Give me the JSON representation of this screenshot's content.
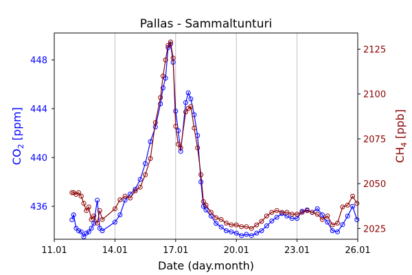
{
  "chart_data": {
    "type": "line",
    "title": "Pallas - Sammaltunturi",
    "xlabel": "Date (day.month)",
    "x_ticks": [
      "11.01",
      "14.01",
      "17.01",
      "20.01",
      "23.01",
      "26.01"
    ],
    "xlim": [
      "11.01",
      "26.01"
    ],
    "grid": "vertical lines at 14.01, 17.01, 20.01, 23.01",
    "left_axis": {
      "label_main": "CO",
      "label_sub": "2",
      "label_unit": "[ppm]",
      "color": "#0000ff",
      "ticks": [
        "436",
        "440",
        "444",
        "448"
      ],
      "ylim": [
        433.3,
        450.2
      ]
    },
    "right_axis": {
      "label_main": "CH",
      "label_sub": "4",
      "label_unit": "[ppb]",
      "color": "#8b0000",
      "ticks": [
        "2025",
        "2050",
        "2075",
        "2100",
        "2125"
      ],
      "ylim": [
        2019,
        2134
      ]
    },
    "series": [
      {
        "axis": "left",
        "color": "#0000ff",
        "marker": "open-circle",
        "points": [
          [
            "11.01 21:00",
            434.9
          ],
          [
            "11.01 23:00",
            435.3
          ],
          [
            "12.01 02:00",
            434.2
          ],
          [
            "12.01 05:00",
            434.0
          ],
          [
            "12.01 08:00",
            433.9
          ],
          [
            "12.01 11:00",
            433.5
          ],
          [
            "12.01 14:00",
            433.8
          ],
          [
            "12.01 17:00",
            433.9
          ],
          [
            "12.01 20:00",
            434.2
          ],
          [
            "12.01 23:00",
            434.6
          ],
          [
            "13.01 03:00",
            436.5
          ],
          [
            "13.01 06:00",
            434.2
          ],
          [
            "13.01 09:00",
            434.0
          ],
          [
            "14.01 00:00",
            434.7
          ],
          [
            "14.01 06:00",
            435.3
          ],
          [
            "14.01 12:00",
            436.5
          ],
          [
            "14.01 18:00",
            437.0
          ],
          [
            "15.01 00:00",
            437.4
          ],
          [
            "15.01 06:00",
            438.2
          ],
          [
            "15.01 12:00",
            439.5
          ],
          [
            "15.01 18:00",
            441.3
          ],
          [
            "16.01 00:00",
            442.5
          ],
          [
            "16.01 06:00",
            444.4
          ],
          [
            "16.01 09:00",
            445.7
          ],
          [
            "16.01 12:00",
            446.5
          ],
          [
            "16.01 15:00",
            449.0
          ],
          [
            "16.01 18:00",
            449.3
          ],
          [
            "16.01 21:00",
            447.8
          ],
          [
            "17.01 00:00",
            443.8
          ],
          [
            "17.01 03:00",
            442.2
          ],
          [
            "17.01 06:00",
            440.5
          ],
          [
            "17.01 12:00",
            444.5
          ],
          [
            "17.01 15:00",
            445.3
          ],
          [
            "17.01 18:00",
            444.8
          ],
          [
            "17.01 22:00",
            443.5
          ],
          [
            "18.01 02:00",
            441.8
          ],
          [
            "18.01 06:00",
            438.0
          ],
          [
            "18.01 09:00",
            436.0
          ],
          [
            "18.01 12:00",
            435.7
          ],
          [
            "18.01 18:00",
            435.2
          ],
          [
            "19.01 00:00",
            434.6
          ],
          [
            "19.01 06:00",
            434.3
          ],
          [
            "19.01 12:00",
            434.0
          ],
          [
            "19.01 18:00",
            433.9
          ],
          [
            "20.01 00:00",
            433.8
          ],
          [
            "20.01 06:00",
            433.6
          ],
          [
            "20.01 12:00",
            433.7
          ],
          [
            "20.01 18:00",
            433.6
          ],
          [
            "21.01 00:00",
            433.8
          ],
          [
            "21.01 06:00",
            434.0
          ],
          [
            "21.01 12:00",
            434.4
          ],
          [
            "21.01 18:00",
            434.8
          ],
          [
            "22.01 00:00",
            435.1
          ],
          [
            "22.01 06:00",
            435.4
          ],
          [
            "22.01 12:00",
            435.2
          ],
          [
            "22.01 18:00",
            435.0
          ],
          [
            "23.01 00:00",
            435.0
          ],
          [
            "23.01 06:00",
            435.6
          ],
          [
            "23.01 12:00",
            435.7
          ],
          [
            "23.01 18:00",
            435.5
          ],
          [
            "24.01 00:00",
            435.8
          ],
          [
            "24.01 06:00",
            435.3
          ],
          [
            "24.01 12:00",
            434.7
          ],
          [
            "24.01 18:00",
            434.0
          ],
          [
            "25.01 00:00",
            433.9
          ],
          [
            "25.01 06:00",
            434.5
          ],
          [
            "25.01 12:00",
            435.2
          ],
          [
            "25.01 18:00",
            436.0
          ],
          [
            "25.01 23:00",
            434.9
          ]
        ]
      },
      {
        "axis": "right",
        "color": "#8b0000",
        "marker": "open-circle",
        "points": [
          [
            "11.01 21:00",
            2045
          ],
          [
            "11.01 23:00",
            2045
          ],
          [
            "12.01 02:00",
            2044
          ],
          [
            "12.01 05:00",
            2045
          ],
          [
            "12.01 08:00",
            2043
          ],
          [
            "12.01 11:00",
            2039
          ],
          [
            "12.01 14:00",
            2035
          ],
          [
            "12.01 17:00",
            2037
          ],
          [
            "12.01 20:00",
            2030
          ],
          [
            "12.01 23:00",
            2032
          ],
          [
            "13.01 03:00",
            2028
          ],
          [
            "13.01 06:00",
            2035
          ],
          [
            "13.01 09:00",
            2030
          ],
          [
            "14.01 00:00",
            2036
          ],
          [
            "14.01 06:00",
            2041
          ],
          [
            "14.01 12:00",
            2043
          ],
          [
            "14.01 18:00",
            2042
          ],
          [
            "15.01 00:00",
            2046
          ],
          [
            "15.01 06:00",
            2048
          ],
          [
            "15.01 12:00",
            2055
          ],
          [
            "15.01 18:00",
            2064
          ],
          [
            "16.01 00:00",
            2084
          ],
          [
            "16.01 06:00",
            2098
          ],
          [
            "16.01 09:00",
            2110
          ],
          [
            "16.01 12:00",
            2119
          ],
          [
            "16.01 15:00",
            2127
          ],
          [
            "16.01 18:00",
            2129
          ],
          [
            "16.01 21:00",
            2120
          ],
          [
            "17.01 00:00",
            2082
          ],
          [
            "17.01 03:00",
            2072
          ],
          [
            "17.01 06:00",
            2070
          ],
          [
            "17.01 12:00",
            2090
          ],
          [
            "17.01 15:00",
            2092
          ],
          [
            "17.01 18:00",
            2093
          ],
          [
            "17.01 22:00",
            2081
          ],
          [
            "18.01 02:00",
            2070
          ],
          [
            "18.01 06:00",
            2055
          ],
          [
            "18.01 09:00",
            2040
          ],
          [
            "18.01 12:00",
            2038
          ],
          [
            "18.01 18:00",
            2034
          ],
          [
            "19.01 00:00",
            2031
          ],
          [
            "19.01 06:00",
            2030
          ],
          [
            "19.01 12:00",
            2028
          ],
          [
            "19.01 18:00",
            2027
          ],
          [
            "20.01 00:00",
            2027
          ],
          [
            "20.01 06:00",
            2026
          ],
          [
            "20.01 12:00",
            2026
          ],
          [
            "20.01 18:00",
            2025
          ],
          [
            "21.01 00:00",
            2027
          ],
          [
            "21.01 06:00",
            2029
          ],
          [
            "21.01 12:00",
            2032
          ],
          [
            "21.01 18:00",
            2034
          ],
          [
            "22.01 00:00",
            2035
          ],
          [
            "22.01 06:00",
            2034
          ],
          [
            "22.01 12:00",
            2034
          ],
          [
            "22.01 18:00",
            2033
          ],
          [
            "23.01 00:00",
            2033
          ],
          [
            "23.01 06:00",
            2034
          ],
          [
            "23.01 12:00",
            2035
          ],
          [
            "23.01 18:00",
            2034
          ],
          [
            "24.01 00:00",
            2033
          ],
          [
            "24.01 06:00",
            2030
          ],
          [
            "24.01 12:00",
            2032
          ],
          [
            "24.01 18:00",
            2027
          ],
          [
            "25.01 00:00",
            2028
          ],
          [
            "25.01 06:00",
            2037
          ],
          [
            "25.01 12:00",
            2038
          ],
          [
            "25.01 18:00",
            2043
          ],
          [
            "25.01 23:00",
            2039
          ]
        ]
      }
    ]
  }
}
